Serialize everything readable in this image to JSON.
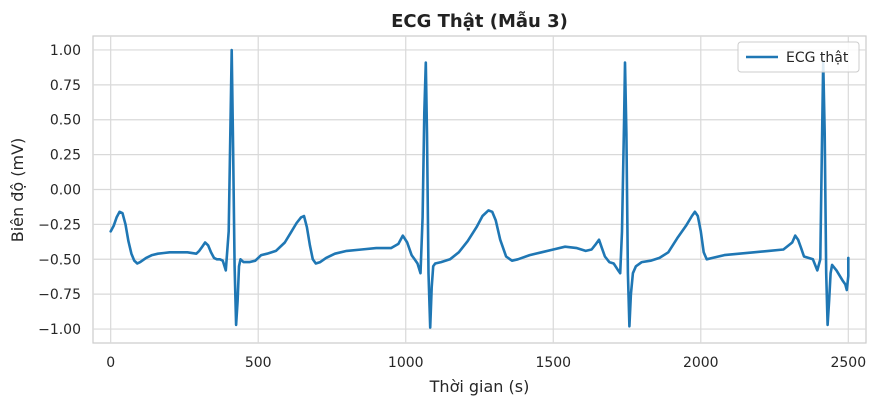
{
  "chart_data": {
    "type": "line",
    "title": "ECG Thật (Mẫu 3)",
    "xlabel": "Thời gian (s)",
    "ylabel": "Biên độ (mV)",
    "xlim": [
      -60,
      2560
    ],
    "ylim": [
      -1.1,
      1.1
    ],
    "xticks": [
      0,
      500,
      1000,
      1500,
      2000,
      2500
    ],
    "yticks": [
      -1.0,
      -0.75,
      -0.5,
      -0.25,
      0.0,
      0.25,
      0.5,
      0.75,
      1.0
    ],
    "xtick_labels": [
      "0",
      "500",
      "1000",
      "1500",
      "2000",
      "2500"
    ],
    "ytick_labels": [
      "−1.00",
      "−0.75",
      "−0.50",
      "−0.25",
      "0.00",
      "0.25",
      "0.50",
      "0.75",
      "1.00"
    ],
    "grid": true,
    "legend": {
      "position": "top-right",
      "entries": [
        "ECG thật"
      ]
    },
    "series": [
      {
        "name": "ECG thật",
        "color": "#1f77b4",
        "x": [
          0,
          10,
          20,
          30,
          40,
          50,
          60,
          70,
          80,
          90,
          100,
          120,
          140,
          160,
          180,
          200,
          230,
          260,
          290,
          300,
          310,
          320,
          330,
          340,
          350,
          360,
          370,
          380,
          390,
          400,
          405,
          410,
          415,
          420,
          425,
          430,
          435,
          440,
          445,
          450,
          460,
          470,
          490,
          510,
          530,
          560,
          590,
          610,
          630,
          645,
          655,
          665,
          675,
          685,
          695,
          710,
          730,
          760,
          800,
          850,
          900,
          950,
          975,
          990,
          1005,
          1020,
          1030,
          1040,
          1050,
          1057,
          1063,
          1068,
          1072,
          1077,
          1083,
          1088,
          1093,
          1100,
          1120,
          1150,
          1180,
          1210,
          1240,
          1260,
          1280,
          1293,
          1305,
          1320,
          1340,
          1360,
          1380,
          1420,
          1460,
          1500,
          1540,
          1580,
          1610,
          1630,
          1645,
          1655,
          1665,
          1675,
          1690,
          1705,
          1720,
          1727,
          1733,
          1740,
          1743,
          1748,
          1753,
          1758,
          1763,
          1770,
          1780,
          1800,
          1830,
          1860,
          1890,
          1920,
          1950,
          1970,
          1980,
          1990,
          2000,
          2010,
          2020,
          2040,
          2080,
          2130,
          2180,
          2230,
          2280,
          2310,
          2320,
          2330,
          2340,
          2350,
          2365,
          2380,
          2395,
          2405,
          2410,
          2415,
          2420,
          2425,
          2430,
          2435,
          2440,
          2445,
          2460,
          2480,
          2490,
          2495,
          2500,
          2500
        ],
        "y": [
          -0.3,
          -0.26,
          -0.2,
          -0.16,
          -0.17,
          -0.25,
          -0.37,
          -0.46,
          -0.51,
          -0.53,
          -0.52,
          -0.49,
          -0.47,
          -0.46,
          -0.455,
          -0.45,
          -0.45,
          -0.45,
          -0.46,
          -0.44,
          -0.41,
          -0.38,
          -0.4,
          -0.45,
          -0.49,
          -0.5,
          -0.5,
          -0.51,
          -0.58,
          -0.3,
          0.35,
          1.0,
          0.3,
          -0.55,
          -0.97,
          -0.8,
          -0.55,
          -0.5,
          -0.51,
          -0.52,
          -0.52,
          -0.52,
          -0.51,
          -0.47,
          -0.46,
          -0.44,
          -0.38,
          -0.31,
          -0.24,
          -0.2,
          -0.19,
          -0.27,
          -0.4,
          -0.5,
          -0.53,
          -0.52,
          -0.49,
          -0.46,
          -0.44,
          -0.43,
          -0.42,
          -0.42,
          -0.39,
          -0.33,
          -0.38,
          -0.47,
          -0.5,
          -0.53,
          -0.6,
          -0.2,
          0.55,
          0.91,
          0.4,
          -0.6,
          -0.99,
          -0.7,
          -0.55,
          -0.53,
          -0.52,
          -0.5,
          -0.45,
          -0.37,
          -0.27,
          -0.19,
          -0.15,
          -0.16,
          -0.22,
          -0.36,
          -0.48,
          -0.51,
          -0.5,
          -0.47,
          -0.45,
          -0.43,
          -0.41,
          -0.42,
          -0.44,
          -0.43,
          -0.39,
          -0.36,
          -0.42,
          -0.48,
          -0.52,
          -0.53,
          -0.58,
          -0.6,
          -0.3,
          0.5,
          0.91,
          0.4,
          -0.6,
          -0.98,
          -0.75,
          -0.6,
          -0.55,
          -0.52,
          -0.51,
          -0.49,
          -0.45,
          -0.35,
          -0.26,
          -0.19,
          -0.16,
          -0.19,
          -0.3,
          -0.45,
          -0.5,
          -0.49,
          -0.47,
          -0.46,
          -0.45,
          -0.44,
          -0.43,
          -0.38,
          -0.33,
          -0.36,
          -0.42,
          -0.48,
          -0.49,
          -0.5,
          -0.58,
          -0.5,
          0.2,
          0.92,
          0.4,
          -0.6,
          -0.97,
          -0.8,
          -0.6,
          -0.54,
          -0.58,
          -0.65,
          -0.68,
          -0.72,
          -0.62,
          -0.49
        ]
      }
    ]
  }
}
